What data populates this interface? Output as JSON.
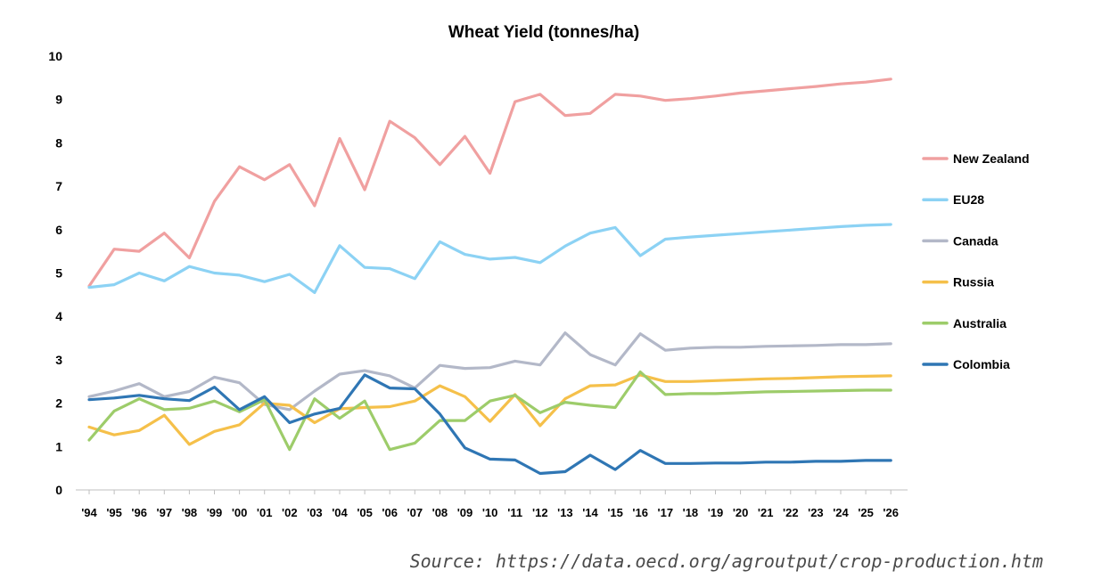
{
  "chart_data": {
    "type": "line",
    "title": "Wheat Yield (tonnes/ha)",
    "xlabel": "",
    "ylabel": "",
    "ylim": [
      0,
      10
    ],
    "yticks": [
      "0",
      "1",
      "2",
      "3",
      "4",
      "5",
      "6",
      "7",
      "8",
      "9",
      "10"
    ],
    "categories": [
      "'94",
      "'95",
      "'96",
      "'97",
      "'98",
      "'99",
      "'00",
      "'01",
      "'02",
      "'03",
      "'04",
      "'05",
      "'06",
      "'07",
      "'08",
      "'09",
      "'10",
      "'11",
      "'12",
      "'13",
      "'14",
      "'15",
      "'16",
      "'17",
      "'18",
      "'19",
      "'20",
      "'21",
      "'22",
      "'23",
      "'24",
      "'25",
      "'26"
    ],
    "grid": false,
    "legend_position": "right",
    "series": [
      {
        "name": "New Zealand",
        "color": "#f0a0a0",
        "values": [
          4.7,
          5.55,
          5.5,
          5.92,
          5.35,
          6.65,
          7.45,
          7.15,
          7.5,
          6.55,
          8.1,
          6.92,
          8.5,
          8.12,
          7.5,
          8.15,
          7.3,
          8.95,
          9.12,
          8.63,
          8.68,
          9.12,
          9.08,
          8.98,
          9.02,
          9.08,
          9.15,
          9.2,
          9.25,
          9.3,
          9.36,
          9.4,
          9.47
        ]
      },
      {
        "name": "EU28",
        "color": "#8cd2f4",
        "values": [
          4.67,
          4.73,
          5.0,
          4.82,
          5.15,
          5.0,
          4.95,
          4.8,
          4.97,
          4.55,
          5.63,
          5.13,
          5.1,
          4.87,
          5.72,
          5.43,
          5.32,
          5.36,
          5.24,
          5.62,
          5.92,
          6.05,
          5.4,
          5.78,
          5.83,
          5.87,
          5.91,
          5.95,
          5.99,
          6.03,
          6.07,
          6.1,
          6.12
        ]
      },
      {
        "name": "Canada",
        "color": "#b3b8c8",
        "values": [
          2.15,
          2.28,
          2.45,
          2.15,
          2.27,
          2.6,
          2.47,
          1.97,
          1.85,
          2.28,
          2.67,
          2.75,
          2.63,
          2.35,
          2.87,
          2.8,
          2.82,
          2.97,
          2.88,
          3.62,
          3.12,
          2.88,
          3.6,
          3.22,
          3.27,
          3.29,
          3.29,
          3.31,
          3.32,
          3.33,
          3.35,
          3.35,
          3.37
        ]
      },
      {
        "name": "Russia",
        "color": "#f5c04a",
        "values": [
          1.45,
          1.27,
          1.37,
          1.72,
          1.05,
          1.35,
          1.5,
          2.0,
          1.95,
          1.55,
          1.87,
          1.9,
          1.92,
          2.05,
          2.4,
          2.15,
          1.58,
          2.2,
          1.48,
          2.1,
          2.4,
          2.42,
          2.65,
          2.5,
          2.5,
          2.52,
          2.54,
          2.56,
          2.57,
          2.59,
          2.61,
          2.62,
          2.63
        ]
      },
      {
        "name": "Australia",
        "color": "#9dcc6a",
        "values": [
          1.15,
          1.82,
          2.1,
          1.85,
          1.88,
          2.05,
          1.8,
          2.08,
          0.93,
          2.1,
          1.65,
          2.05,
          0.93,
          1.08,
          1.6,
          1.6,
          2.05,
          2.18,
          1.78,
          2.02,
          1.95,
          1.9,
          2.72,
          2.2,
          2.22,
          2.22,
          2.24,
          2.26,
          2.27,
          2.28,
          2.29,
          2.3,
          2.3
        ]
      },
      {
        "name": "Colombia",
        "color": "#2f76b4",
        "values": [
          2.08,
          2.12,
          2.18,
          2.1,
          2.06,
          2.37,
          1.85,
          2.15,
          1.55,
          1.75,
          1.88,
          2.65,
          2.35,
          2.33,
          1.75,
          0.97,
          0.71,
          0.69,
          0.38,
          0.42,
          0.8,
          0.47,
          0.91,
          0.61,
          0.61,
          0.62,
          0.62,
          0.64,
          0.64,
          0.66,
          0.66,
          0.68,
          0.68
        ]
      }
    ]
  },
  "source_text": "Source: https://data.oecd.org/agroutput/crop-production.htm"
}
